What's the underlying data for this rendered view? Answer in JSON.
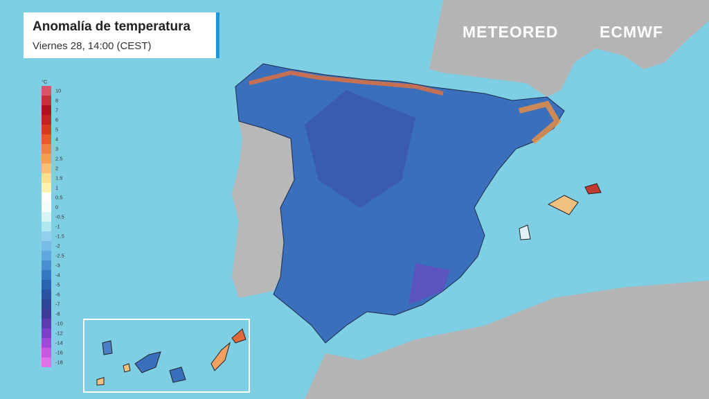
{
  "header": {
    "title": "Anomalía de temperatura",
    "subtitle": "Viernes 28, 14:00 (CEST)"
  },
  "logos": [
    "METEORED",
    "ECMWF"
  ],
  "legend": {
    "unit": "°C",
    "stops": [
      10,
      8,
      7,
      6,
      5,
      4,
      3,
      2.5,
      2,
      1.5,
      1,
      0.5,
      0,
      -0.5,
      -1,
      -1.5,
      -2,
      -2.5,
      -3,
      -4,
      -5,
      -6,
      -7,
      -8,
      -10,
      -12,
      -14,
      -16,
      -18
    ],
    "colors": [
      "#d8546a",
      "#c8303e",
      "#b01020",
      "#c42222",
      "#d83a20",
      "#e85a28",
      "#f08040",
      "#f4a050",
      "#f8c070",
      "#fbe08a",
      "#fdf2b0",
      "#ffffff",
      "#f4fcfc",
      "#d8f4f4",
      "#b0e8f0",
      "#90d0ec",
      "#78bce8",
      "#60a8e0",
      "#4890d0",
      "#3478c0",
      "#2a64b0",
      "#2a52a0",
      "#2e4494",
      "#3c3c98",
      "#5a3cb0",
      "#7c40c8",
      "#a048d8",
      "#c858e0",
      "#e070e8"
    ]
  }
}
